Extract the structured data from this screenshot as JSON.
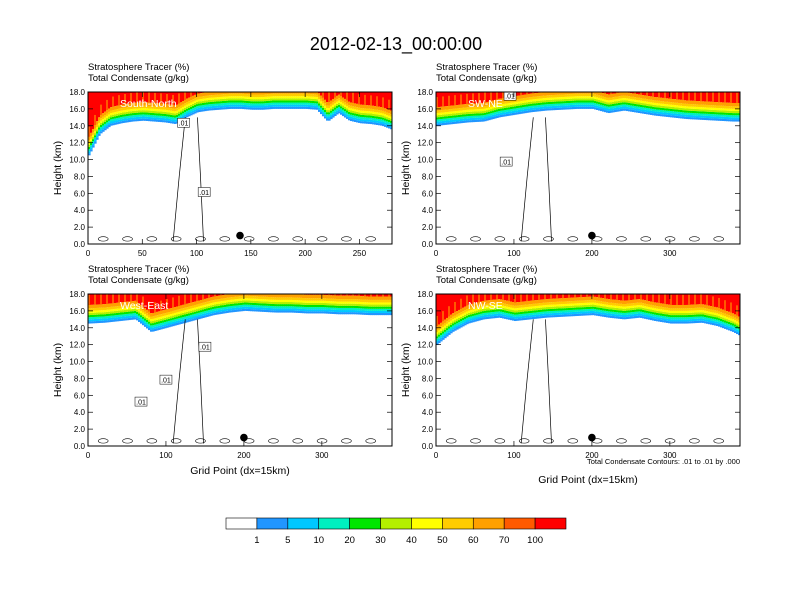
{
  "title": "2012-02-13_00:00:00",
  "chart_data": {
    "type": "heatmap",
    "panels": [
      {
        "label": "South-North",
        "header_line1": "Stratosphere Tracer   (%)",
        "header_line2": "Total Condensate   (g/kg)",
        "xlabel": "",
        "ylabel": "Height (km)",
        "xlim": [
          0,
          280
        ],
        "ylim": [
          0,
          18
        ],
        "xticks": [
          "0",
          "50",
          "100",
          "150",
          "200",
          "250"
        ],
        "xtick_values": [
          0,
          50,
          100,
          150,
          200,
          250
        ],
        "yticks": [
          "0.0",
          "2.0",
          "4.0",
          "6.0",
          "8.0",
          "10.0",
          "12.0",
          "14.0",
          "16.0",
          "18.0"
        ],
        "marker": {
          "x": 140,
          "y": 1.0
        },
        "contour_labels": [
          {
            "text": ".01",
            "x": 88,
            "y": 14.3
          },
          {
            "text": ".01",
            "x": 107,
            "y": 6.1
          }
        ],
        "tracer_profile": {
          "x": [
            0,
            10,
            20,
            30,
            40,
            50,
            60,
            70,
            80,
            90,
            100,
            110,
            120,
            130,
            140,
            150,
            160,
            170,
            180,
            190,
            200,
            210,
            220,
            230,
            240,
            250,
            260,
            270,
            280
          ],
          "z_tracer_base": [
            10.5,
            13.0,
            14.0,
            14.3,
            14.5,
            14.6,
            14.5,
            14.4,
            14.2,
            15.0,
            15.6,
            15.8,
            15.9,
            16.0,
            16.0,
            15.9,
            15.9,
            16.0,
            16.0,
            16.0,
            16.0,
            15.9,
            14.5,
            15.5,
            14.6,
            14.3,
            14.2,
            14.0,
            13.5
          ]
        }
      },
      {
        "label": "SW-NE",
        "header_line1": "Stratosphere Tracer   (%)",
        "header_line2": "Total Condensate   (g/kg)",
        "xlabel": "",
        "ylabel": "Height (km)",
        "xlim": [
          0,
          390
        ],
        "ylim": [
          0,
          18
        ],
        "xticks": [
          "0",
          "100",
          "200",
          "300"
        ],
        "xtick_values": [
          0,
          100,
          200,
          300
        ],
        "yticks": [
          "0.0",
          "2.0",
          "4.0",
          "6.0",
          "8.0",
          "10.0",
          "12.0",
          "14.0",
          "16.0",
          "18.0"
        ],
        "marker": {
          "x": 200,
          "y": 1.0
        },
        "contour_labels": [
          {
            "text": ".01",
            "x": 95,
            "y": 17.5
          },
          {
            "text": ".01",
            "x": 90,
            "y": 9.7
          }
        ],
        "tracer_profile": {
          "x": [
            0,
            20,
            40,
            60,
            80,
            100,
            120,
            140,
            160,
            180,
            200,
            220,
            240,
            260,
            280,
            300,
            320,
            340,
            360,
            380,
            390
          ],
          "z_tracer_base": [
            14.0,
            14.2,
            14.4,
            14.5,
            15.0,
            15.3,
            15.6,
            15.8,
            15.9,
            16.0,
            16.0,
            15.5,
            15.8,
            15.5,
            15.2,
            15.0,
            14.8,
            14.7,
            14.6,
            14.5,
            14.5
          ]
        }
      },
      {
        "label": "West-East",
        "header_line1": "Stratosphere Tracer   (%)",
        "header_line2": "Total Condensate   (g/kg)",
        "xlabel": "Grid Point (dx=15km)",
        "ylabel": "Height (km)",
        "xlim": [
          0,
          390
        ],
        "ylim": [
          0,
          18
        ],
        "xticks": [
          "0",
          "100",
          "200",
          "300"
        ],
        "xtick_values": [
          0,
          100,
          200,
          300
        ],
        "yticks": [
          "0.0",
          "2.0",
          "4.0",
          "6.0",
          "8.0",
          "10.0",
          "12.0",
          "14.0",
          "16.0",
          "18.0"
        ],
        "marker": {
          "x": 200,
          "y": 1.0
        },
        "contour_labels": [
          {
            "text": ".01",
            "x": 150,
            "y": 11.7
          },
          {
            "text": ".01",
            "x": 100,
            "y": 7.8
          },
          {
            "text": ".01",
            "x": 68,
            "y": 5.2
          }
        ],
        "tracer_profile": {
          "x": [
            0,
            20,
            40,
            60,
            80,
            100,
            120,
            140,
            160,
            180,
            200,
            220,
            240,
            260,
            280,
            300,
            320,
            340,
            360,
            380,
            390
          ],
          "z_tracer_base": [
            14.5,
            14.6,
            14.8,
            15.0,
            13.5,
            14.0,
            14.5,
            15.0,
            15.5,
            15.8,
            16.0,
            15.9,
            15.8,
            15.8,
            15.7,
            15.7,
            15.6,
            15.6,
            15.5,
            15.5,
            15.5
          ]
        }
      },
      {
        "label": "NW-SE",
        "header_line1": "Stratosphere Tracer   (%)",
        "header_line2": "Total Condensate   (g/kg)",
        "xlabel": "Grid Point (dx=15km)",
        "ylabel": "Height (km)",
        "xlim": [
          0,
          390
        ],
        "ylim": [
          0,
          18
        ],
        "xticks": [
          "0",
          "100",
          "200",
          "300"
        ],
        "xtick_values": [
          0,
          100,
          200,
          300
        ],
        "yticks": [
          "0.0",
          "2.0",
          "4.0",
          "6.0",
          "8.0",
          "10.0",
          "12.0",
          "14.0",
          "16.0",
          "18.0"
        ],
        "marker": {
          "x": 200,
          "y": 1.0
        },
        "contour_labels": [],
        "note": "Total Condensate Contours: .01 to .01 by .000",
        "tracer_profile": {
          "x": [
            0,
            20,
            40,
            60,
            80,
            100,
            120,
            140,
            160,
            180,
            200,
            220,
            240,
            260,
            280,
            300,
            320,
            340,
            360,
            380,
            390
          ],
          "z_tracer_base": [
            12.0,
            13.5,
            14.5,
            15.0,
            15.2,
            14.8,
            15.0,
            15.2,
            15.3,
            15.4,
            15.5,
            15.2,
            15.0,
            15.2,
            14.8,
            14.5,
            14.5,
            14.6,
            14.2,
            13.5,
            13.0
          ]
        }
      }
    ],
    "colorbar": {
      "levels": [
        "1",
        "5",
        "10",
        "20",
        "30",
        "40",
        "50",
        "60",
        "70",
        "100"
      ],
      "colors": [
        "#ffffff",
        "#2196ff",
        "#00c8ff",
        "#00f0c0",
        "#00e600",
        "#b4f000",
        "#ffff00",
        "#ffcc00",
        "#ffa000",
        "#ff5a00",
        "#ff0000"
      ]
    }
  }
}
